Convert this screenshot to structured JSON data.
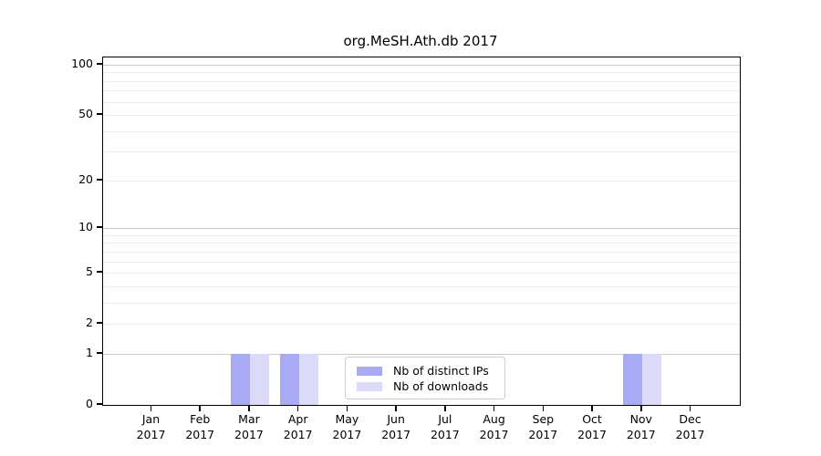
{
  "chart_data": {
    "type": "bar",
    "title": "org.MeSH.Ath.db 2017",
    "categories": [
      "Jan 2017",
      "Feb 2017",
      "Mar 2017",
      "Apr 2017",
      "May 2017",
      "Jun 2017",
      "Jul 2017",
      "Aug 2017",
      "Sep 2017",
      "Oct 2017",
      "Nov 2017",
      "Dec 2017"
    ],
    "series": [
      {
        "name": "Nb of distinct IPs",
        "color": "#a8aaf6",
        "values": [
          0,
          0,
          1,
          1,
          0,
          0,
          0,
          0,
          0,
          0,
          1,
          0
        ]
      },
      {
        "name": "Nb of downloads",
        "color": "#dbdbf9",
        "values": [
          0,
          0,
          1,
          1,
          0,
          0,
          0,
          0,
          0,
          0,
          1,
          0
        ]
      }
    ],
    "xlabel": "",
    "ylabel": "",
    "yscale": "log1p",
    "ylim": [
      0,
      111
    ],
    "yticks": [
      0,
      1,
      2,
      5,
      10,
      20,
      50,
      100
    ],
    "major_gridlines": [
      1,
      10,
      100
    ],
    "minor_gridlines": [
      2,
      3,
      4,
      5,
      6,
      7,
      8,
      9,
      20,
      30,
      40,
      50,
      60,
      70,
      80,
      90
    ],
    "grid": "on",
    "legend_position": "bottom-center-inside",
    "colors": {
      "axis": "#000000",
      "text": "#000000",
      "major_grid": "#c9c9c9",
      "minor_grid": "#ededed",
      "background": "#ffffff"
    }
  }
}
